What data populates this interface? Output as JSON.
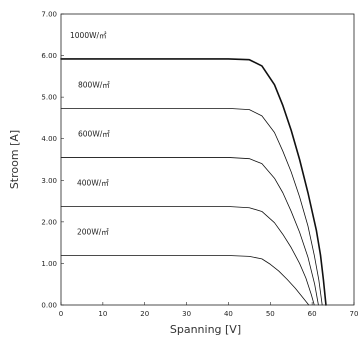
{
  "chart_data": {
    "type": "line",
    "title": "",
    "xlabel": "Spanning [V]",
    "ylabel": "Stroom [A]",
    "xlim": [
      0,
      70
    ],
    "ylim": [
      0,
      7
    ],
    "x_ticks": [
      0,
      10,
      20,
      30,
      40,
      50,
      60,
      70
    ],
    "x_tick_labels": [
      "0",
      "10",
      "20",
      "30",
      "40",
      "50",
      "60",
      "70"
    ],
    "y_ticks": [
      0,
      1,
      2,
      3,
      4,
      5,
      6,
      7
    ],
    "y_tick_labels": [
      "0.00",
      "1.00",
      "2.00",
      "3.00",
      "4.00",
      "5.00",
      "6.00",
      "7.00"
    ],
    "grid": false,
    "line_color": "#111111",
    "series": [
      {
        "name": "1000W/㎡",
        "emphasis": true,
        "x": [
          0,
          40,
          45,
          48,
          51,
          53,
          55,
          57,
          59,
          61,
          62,
          62.7,
          63.3
        ],
        "y": [
          5.92,
          5.92,
          5.9,
          5.75,
          5.3,
          4.8,
          4.2,
          3.5,
          2.7,
          1.8,
          1.2,
          0.6,
          0
        ]
      },
      {
        "name": "800W/㎡",
        "x": [
          0,
          40,
          45,
          48,
          51,
          53,
          55,
          57,
          59,
          60.5,
          61.6,
          62.4
        ],
        "y": [
          4.73,
          4.73,
          4.7,
          4.55,
          4.15,
          3.7,
          3.2,
          2.6,
          1.9,
          1.2,
          0.6,
          0
        ]
      },
      {
        "name": "600W/㎡",
        "x": [
          0,
          40,
          45,
          48,
          51,
          53,
          55,
          57,
          59,
          60.6,
          61.5
        ],
        "y": [
          3.55,
          3.55,
          3.52,
          3.4,
          3.05,
          2.7,
          2.25,
          1.75,
          1.15,
          0.5,
          0
        ]
      },
      {
        "name": "400W/㎡",
        "x": [
          0,
          40,
          45,
          48,
          51,
          53,
          55,
          57,
          58.5,
          59.8,
          60.5
        ],
        "y": [
          2.37,
          2.37,
          2.34,
          2.25,
          1.98,
          1.7,
          1.38,
          1.0,
          0.65,
          0.25,
          0
        ]
      },
      {
        "name": "200W/㎡",
        "x": [
          0,
          40,
          45,
          48,
          50,
          52,
          54,
          56,
          58,
          59.2
        ],
        "y": [
          1.19,
          1.19,
          1.17,
          1.11,
          0.98,
          0.82,
          0.62,
          0.4,
          0.15,
          0
        ]
      }
    ]
  }
}
